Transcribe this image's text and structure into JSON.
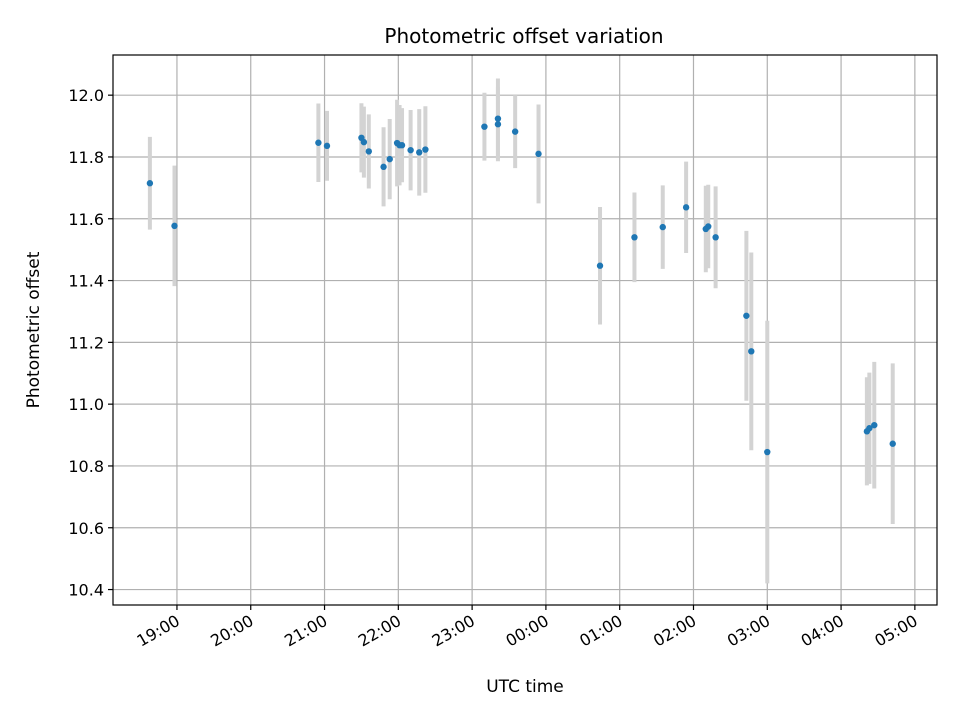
{
  "chart_data": {
    "type": "scatter",
    "title": "Photometric offset variation",
    "xlabel": "UTC time",
    "ylabel": "Photometric offset",
    "x_unit": "hours (UTC clock, after 24:00 continues into next day)",
    "xlim": [
      "18:08",
      "05:18"
    ],
    "ylim": [
      10.35,
      12.13
    ],
    "x_ticks": [
      "19:00",
      "20:00",
      "21:00",
      "22:00",
      "23:00",
      "00:00",
      "01:00",
      "02:00",
      "03:00",
      "04:00",
      "05:00"
    ],
    "y_ticks": [
      "10.4",
      "10.6",
      "10.8",
      "11.0",
      "11.2",
      "11.4",
      "11.6",
      "11.8",
      "12.0"
    ],
    "grid": true,
    "colors": {
      "point": "#1f77b4",
      "errorbar": "#d3d3d3",
      "grid": "#b0b0b0"
    },
    "series": [
      {
        "points": [
          {
            "x": "18:38",
            "y": 11.715,
            "err": 0.15
          },
          {
            "x": "18:58",
            "y": 11.577,
            "err": 0.195
          },
          {
            "x": "20:55",
            "y": 11.846,
            "err": 0.127
          },
          {
            "x": "21:02",
            "y": 11.836,
            "err": 0.113
          },
          {
            "x": "21:30",
            "y": 11.862,
            "err": 0.112
          },
          {
            "x": "21:32",
            "y": 11.848,
            "err": 0.115
          },
          {
            "x": "21:36",
            "y": 11.818,
            "err": 0.12
          },
          {
            "x": "21:48",
            "y": 11.768,
            "err": 0.128
          },
          {
            "x": "21:53",
            "y": 11.793,
            "err": 0.13
          },
          {
            "x": "21:59",
            "y": 11.845,
            "err": 0.14
          },
          {
            "x": "22:01",
            "y": 11.838,
            "err": 0.13
          },
          {
            "x": "22:03",
            "y": 11.838,
            "err": 0.12
          },
          {
            "x": "22:10",
            "y": 11.822,
            "err": 0.13
          },
          {
            "x": "22:17",
            "y": 11.815,
            "err": 0.14
          },
          {
            "x": "22:22",
            "y": 11.824,
            "err": 0.14
          },
          {
            "x": "23:10",
            "y": 11.898,
            "err": 0.11
          },
          {
            "x": "23:21",
            "y": 11.906,
            "err": 0.12
          },
          {
            "x": "23:21",
            "y": 11.924,
            "err": 0.13
          },
          {
            "x": "23:35",
            "y": 11.882,
            "err": 0.118
          },
          {
            "x": "23:54",
            "y": 11.81,
            "err": 0.16
          },
          {
            "x": "00:44",
            "y": 11.448,
            "err": 0.19
          },
          {
            "x": "01:12",
            "y": 11.54,
            "err": 0.145
          },
          {
            "x": "01:35",
            "y": 11.573,
            "err": 0.135
          },
          {
            "x": "01:54",
            "y": 11.637,
            "err": 0.148
          },
          {
            "x": "02:10",
            "y": 11.567,
            "err": 0.14
          },
          {
            "x": "02:12",
            "y": 11.575,
            "err": 0.135
          },
          {
            "x": "02:18",
            "y": 11.54,
            "err": 0.165
          },
          {
            "x": "02:43",
            "y": 11.286,
            "err": 0.275
          },
          {
            "x": "02:47",
            "y": 11.171,
            "err": 0.32
          },
          {
            "x": "03:00",
            "y": 10.845,
            "err": 0.425
          },
          {
            "x": "04:21",
            "y": 10.912,
            "err": 0.175
          },
          {
            "x": "04:23",
            "y": 10.922,
            "err": 0.18
          },
          {
            "x": "04:27",
            "y": 10.932,
            "err": 0.205
          },
          {
            "x": "04:42",
            "y": 10.872,
            "err": 0.26
          }
        ]
      }
    ]
  }
}
